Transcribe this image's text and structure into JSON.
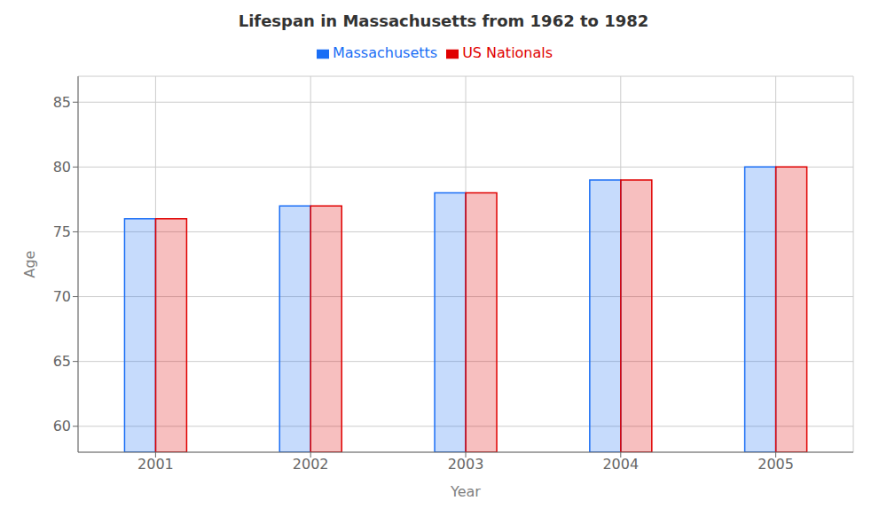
{
  "chart_data": {
    "type": "bar",
    "title": "Lifespan in Massachusetts from 1962 to 1982",
    "x_label": "Year",
    "y_label": "Age",
    "categories": [
      "2001",
      "2002",
      "2003",
      "2004",
      "2005"
    ],
    "series": [
      {
        "name": "Massachusetts",
        "color": "#1a6ef5",
        "values": [
          76,
          77,
          78,
          79,
          80
        ]
      },
      {
        "name": "US Nationals",
        "color": "#e00000",
        "values": [
          76,
          77,
          78,
          79,
          80
        ]
      }
    ],
    "ylim": [
      58,
      87
    ],
    "yticks": [
      60,
      65,
      70,
      75,
      80,
      85
    ],
    "grid": true,
    "legend": "top"
  }
}
